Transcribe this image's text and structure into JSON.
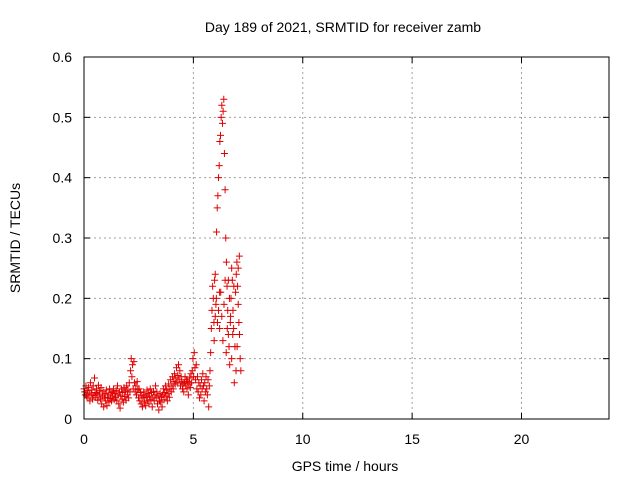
{
  "chart_data": {
    "type": "scatter",
    "title": "Day 189 of 2021, SRMTID for receiver zamb",
    "xlabel": "GPS time / hours",
    "ylabel": "SRMTID / TECUs",
    "xlim": [
      0,
      24
    ],
    "ylim": [
      0,
      0.6
    ],
    "xticks": [
      "0",
      "5",
      "10",
      "15",
      "20"
    ],
    "yticks": [
      "0",
      "0.1",
      "0.2",
      "0.3",
      "0.4",
      "0.5",
      "0.6"
    ],
    "grid": true,
    "marker": "+",
    "marker_color": "#e00000",
    "series": [
      {
        "points": [
          [
            0.0,
            0.05
          ],
          [
            0.03,
            0.045
          ],
          [
            0.06,
            0.04
          ],
          [
            0.09,
            0.055
          ],
          [
            0.12,
            0.038
          ],
          [
            0.15,
            0.047
          ],
          [
            0.18,
            0.035
          ],
          [
            0.21,
            0.052
          ],
          [
            0.24,
            0.043
          ],
          [
            0.27,
            0.03
          ],
          [
            0.3,
            0.06
          ],
          [
            0.33,
            0.041
          ],
          [
            0.36,
            0.048
          ],
          [
            0.39,
            0.033
          ],
          [
            0.42,
            0.055
          ],
          [
            0.45,
            0.039
          ],
          [
            0.48,
            0.068
          ],
          [
            0.51,
            0.044
          ],
          [
            0.54,
            0.036
          ],
          [
            0.57,
            0.05
          ],
          [
            0.6,
            0.042
          ],
          [
            0.63,
            0.031
          ],
          [
            0.66,
            0.056
          ],
          [
            0.69,
            0.04
          ],
          [
            0.72,
            0.047
          ],
          [
            0.75,
            0.033
          ],
          [
            0.78,
            0.052
          ],
          [
            0.81,
            0.025
          ],
          [
            0.84,
            0.038
          ],
          [
            0.87,
            0.045
          ],
          [
            0.9,
            0.02
          ],
          [
            0.93,
            0.035
          ],
          [
            0.96,
            0.042
          ],
          [
            0.99,
            0.03
          ],
          [
            1.02,
            0.048
          ],
          [
            1.05,
            0.022
          ],
          [
            1.08,
            0.036
          ],
          [
            1.11,
            0.04
          ],
          [
            1.14,
            0.028
          ],
          [
            1.17,
            0.05
          ],
          [
            1.2,
            0.034
          ],
          [
            1.23,
            0.043
          ],
          [
            1.26,
            0.03
          ],
          [
            1.29,
            0.045
          ],
          [
            1.32,
            0.038
          ],
          [
            1.35,
            0.05
          ],
          [
            1.38,
            0.032
          ],
          [
            1.41,
            0.042
          ],
          [
            1.44,
            0.036
          ],
          [
            1.47,
            0.047
          ],
          [
            1.5,
            0.03
          ],
          [
            1.53,
            0.055
          ],
          [
            1.56,
            0.04
          ],
          [
            1.59,
            0.025
          ],
          [
            1.62,
            0.045
          ],
          [
            1.65,
            0.018
          ],
          [
            1.68,
            0.038
          ],
          [
            1.71,
            0.05
          ],
          [
            1.74,
            0.033
          ],
          [
            1.77,
            0.044
          ],
          [
            1.8,
            0.028
          ],
          [
            1.83,
            0.052
          ],
          [
            1.86,
            0.037
          ],
          [
            1.89,
            0.046
          ],
          [
            1.92,
            0.031
          ],
          [
            1.95,
            0.055
          ],
          [
            1.98,
            0.04
          ],
          [
            2.01,
            0.048
          ],
          [
            2.04,
            0.035
          ],
          [
            2.07,
            0.06
          ],
          [
            2.1,
            0.045
          ],
          [
            2.13,
            0.08
          ],
          [
            2.16,
            0.1
          ],
          [
            2.19,
            0.07
          ],
          [
            2.22,
            0.09
          ],
          [
            2.25,
            0.05
          ],
          [
            2.28,
            0.095
          ],
          [
            2.31,
            0.06
          ],
          [
            2.34,
            0.045
          ],
          [
            2.37,
            0.055
          ],
          [
            2.4,
            0.04
          ],
          [
            2.43,
            0.062
          ],
          [
            2.46,
            0.048
          ],
          [
            2.49,
            0.035
          ],
          [
            2.52,
            0.05
          ],
          [
            2.55,
            0.03
          ],
          [
            2.58,
            0.044
          ],
          [
            2.61,
            0.025
          ],
          [
            2.64,
            0.038
          ],
          [
            2.67,
            0.02
          ],
          [
            2.7,
            0.035
          ],
          [
            2.73,
            0.045
          ],
          [
            2.76,
            0.028
          ],
          [
            2.79,
            0.04
          ],
          [
            2.82,
            0.022
          ],
          [
            2.85,
            0.036
          ],
          [
            2.88,
            0.048
          ],
          [
            2.91,
            0.03
          ],
          [
            2.94,
            0.042
          ],
          [
            2.97,
            0.025
          ],
          [
            3.0,
            0.038
          ],
          [
            3.03,
            0.05
          ],
          [
            3.06,
            0.032
          ],
          [
            3.09,
            0.044
          ],
          [
            3.12,
            0.02
          ],
          [
            3.15,
            0.035
          ],
          [
            3.18,
            0.046
          ],
          [
            3.21,
            0.03
          ],
          [
            3.24,
            0.04
          ],
          [
            3.27,
            0.055
          ],
          [
            3.3,
            0.035
          ],
          [
            3.33,
            0.045
          ],
          [
            3.36,
            0.025
          ],
          [
            3.39,
            0.038
          ],
          [
            3.42,
            0.015
          ],
          [
            3.45,
            0.03
          ],
          [
            3.48,
            0.042
          ],
          [
            3.51,
            0.028
          ],
          [
            3.54,
            0.036
          ],
          [
            3.57,
            0.02
          ],
          [
            3.6,
            0.04
          ],
          [
            3.63,
            0.05
          ],
          [
            3.66,
            0.032
          ],
          [
            3.69,
            0.044
          ],
          [
            3.72,
            0.055
          ],
          [
            3.75,
            0.038
          ],
          [
            3.78,
            0.048
          ],
          [
            3.81,
            0.03
          ],
          [
            3.84,
            0.042
          ],
          [
            3.87,
            0.058
          ],
          [
            3.9,
            0.036
          ],
          [
            3.93,
            0.05
          ],
          [
            3.96,
            0.065
          ],
          [
            3.99,
            0.045
          ],
          [
            4.02,
            0.055
          ],
          [
            4.05,
            0.07
          ],
          [
            4.08,
            0.05
          ],
          [
            4.11,
            0.062
          ],
          [
            4.14,
            0.075
          ],
          [
            4.17,
            0.058
          ],
          [
            4.2,
            0.068
          ],
          [
            4.23,
            0.085
          ],
          [
            4.26,
            0.06
          ],
          [
            4.29,
            0.072
          ],
          [
            4.32,
            0.09
          ],
          [
            4.35,
            0.065
          ],
          [
            4.38,
            0.08
          ],
          [
            4.41,
            0.055
          ],
          [
            4.44,
            0.07
          ],
          [
            4.47,
            0.062
          ],
          [
            4.5,
            0.05
          ],
          [
            4.53,
            0.058
          ],
          [
            4.56,
            0.045
          ],
          [
            4.59,
            0.06
          ],
          [
            4.62,
            0.07
          ],
          [
            4.65,
            0.055
          ],
          [
            4.68,
            0.065
          ],
          [
            4.71,
            0.05
          ],
          [
            4.74,
            0.062
          ],
          [
            4.77,
            0.04
          ],
          [
            4.8,
            0.058
          ],
          [
            4.83,
            0.068
          ],
          [
            4.86,
            0.052
          ],
          [
            4.89,
            0.075
          ],
          [
            4.92,
            0.06
          ],
          [
            4.95,
            0.08
          ],
          [
            4.98,
            0.1
          ],
          [
            5.01,
            0.07
          ],
          [
            5.04,
            0.11
          ],
          [
            5.07,
            0.085
          ],
          [
            5.1,
            0.065
          ],
          [
            5.13,
            0.09
          ],
          [
            5.16,
            0.05
          ],
          [
            5.19,
            0.07
          ],
          [
            5.22,
            0.045
          ],
          [
            5.25,
            0.06
          ],
          [
            5.28,
            0.035
          ],
          [
            5.31,
            0.055
          ],
          [
            5.34,
            0.04
          ],
          [
            5.37,
            0.065
          ],
          [
            5.4,
            0.05
          ],
          [
            5.43,
            0.075
          ],
          [
            5.46,
            0.055
          ],
          [
            5.49,
            0.03
          ],
          [
            5.52,
            0.06
          ],
          [
            5.55,
            0.045
          ],
          [
            5.58,
            0.07
          ],
          [
            5.61,
            0.05
          ],
          [
            5.64,
            0.04
          ],
          [
            5.67,
            0.065
          ],
          [
            5.7,
            0.02
          ],
          [
            5.73,
            0.055
          ],
          [
            5.76,
            0.08
          ],
          [
            5.79,
            0.11
          ],
          [
            5.82,
            0.15
          ],
          [
            5.85,
            0.18
          ],
          [
            5.88,
            0.22
          ],
          [
            5.91,
            0.2
          ],
          [
            5.94,
            0.16
          ],
          [
            5.97,
            0.23
          ],
          [
            6.0,
            0.24
          ],
          [
            6.03,
            0.19
          ],
          [
            6.06,
            0.31
          ],
          [
            6.09,
            0.35
          ],
          [
            6.12,
            0.37
          ],
          [
            6.15,
            0.4
          ],
          [
            6.18,
            0.42
          ],
          [
            6.21,
            0.46
          ],
          [
            6.24,
            0.47
          ],
          [
            6.27,
            0.5
          ],
          [
            6.3,
            0.52
          ],
          [
            6.33,
            0.49
          ],
          [
            6.36,
            0.51
          ],
          [
            6.39,
            0.53
          ],
          [
            6.42,
            0.44
          ],
          [
            6.45,
            0.38
          ],
          [
            6.48,
            0.3
          ],
          [
            6.51,
            0.26
          ],
          [
            6.54,
            0.22
          ],
          [
            6.57,
            0.18
          ],
          [
            6.6,
            0.14
          ],
          [
            6.63,
            0.12
          ],
          [
            6.66,
            0.09
          ],
          [
            6.69,
            0.16
          ],
          [
            6.72,
            0.2
          ],
          [
            6.75,
            0.25
          ],
          [
            6.78,
            0.23
          ],
          [
            6.81,
            0.18
          ],
          [
            6.84,
            0.15
          ],
          [
            6.87,
            0.06
          ],
          [
            6.9,
            0.12
          ],
          [
            6.93,
            0.21
          ],
          [
            6.96,
            0.24
          ],
          [
            6.99,
            0.26
          ],
          [
            7.02,
            0.22
          ],
          [
            7.05,
            0.19
          ],
          [
            7.08,
            0.16
          ],
          [
            7.11,
            0.14
          ],
          [
            7.14,
            0.1
          ],
          [
            7.17,
            0.08
          ],
          [
            6.05,
            0.2
          ],
          [
            6.1,
            0.16
          ],
          [
            6.15,
            0.18
          ],
          [
            6.2,
            0.15
          ],
          [
            6.25,
            0.21
          ],
          [
            6.3,
            0.17
          ],
          [
            6.35,
            0.13
          ],
          [
            6.4,
            0.19
          ],
          [
            6.5,
            0.11
          ],
          [
            6.55,
            0.15
          ],
          [
            6.6,
            0.23
          ],
          [
            6.65,
            0.2
          ],
          [
            6.7,
            0.17
          ],
          [
            6.75,
            0.1
          ],
          [
            6.8,
            0.14
          ],
          [
            6.85,
            0.22
          ],
          [
            6.95,
            0.08
          ],
          [
            7.0,
            0.12
          ],
          [
            7.05,
            0.25
          ],
          [
            7.1,
            0.27
          ],
          [
            5.95,
            0.13
          ],
          [
            6.0,
            0.17
          ],
          [
            6.2,
            0.21
          ],
          [
            6.45,
            0.23
          ]
        ]
      }
    ]
  }
}
